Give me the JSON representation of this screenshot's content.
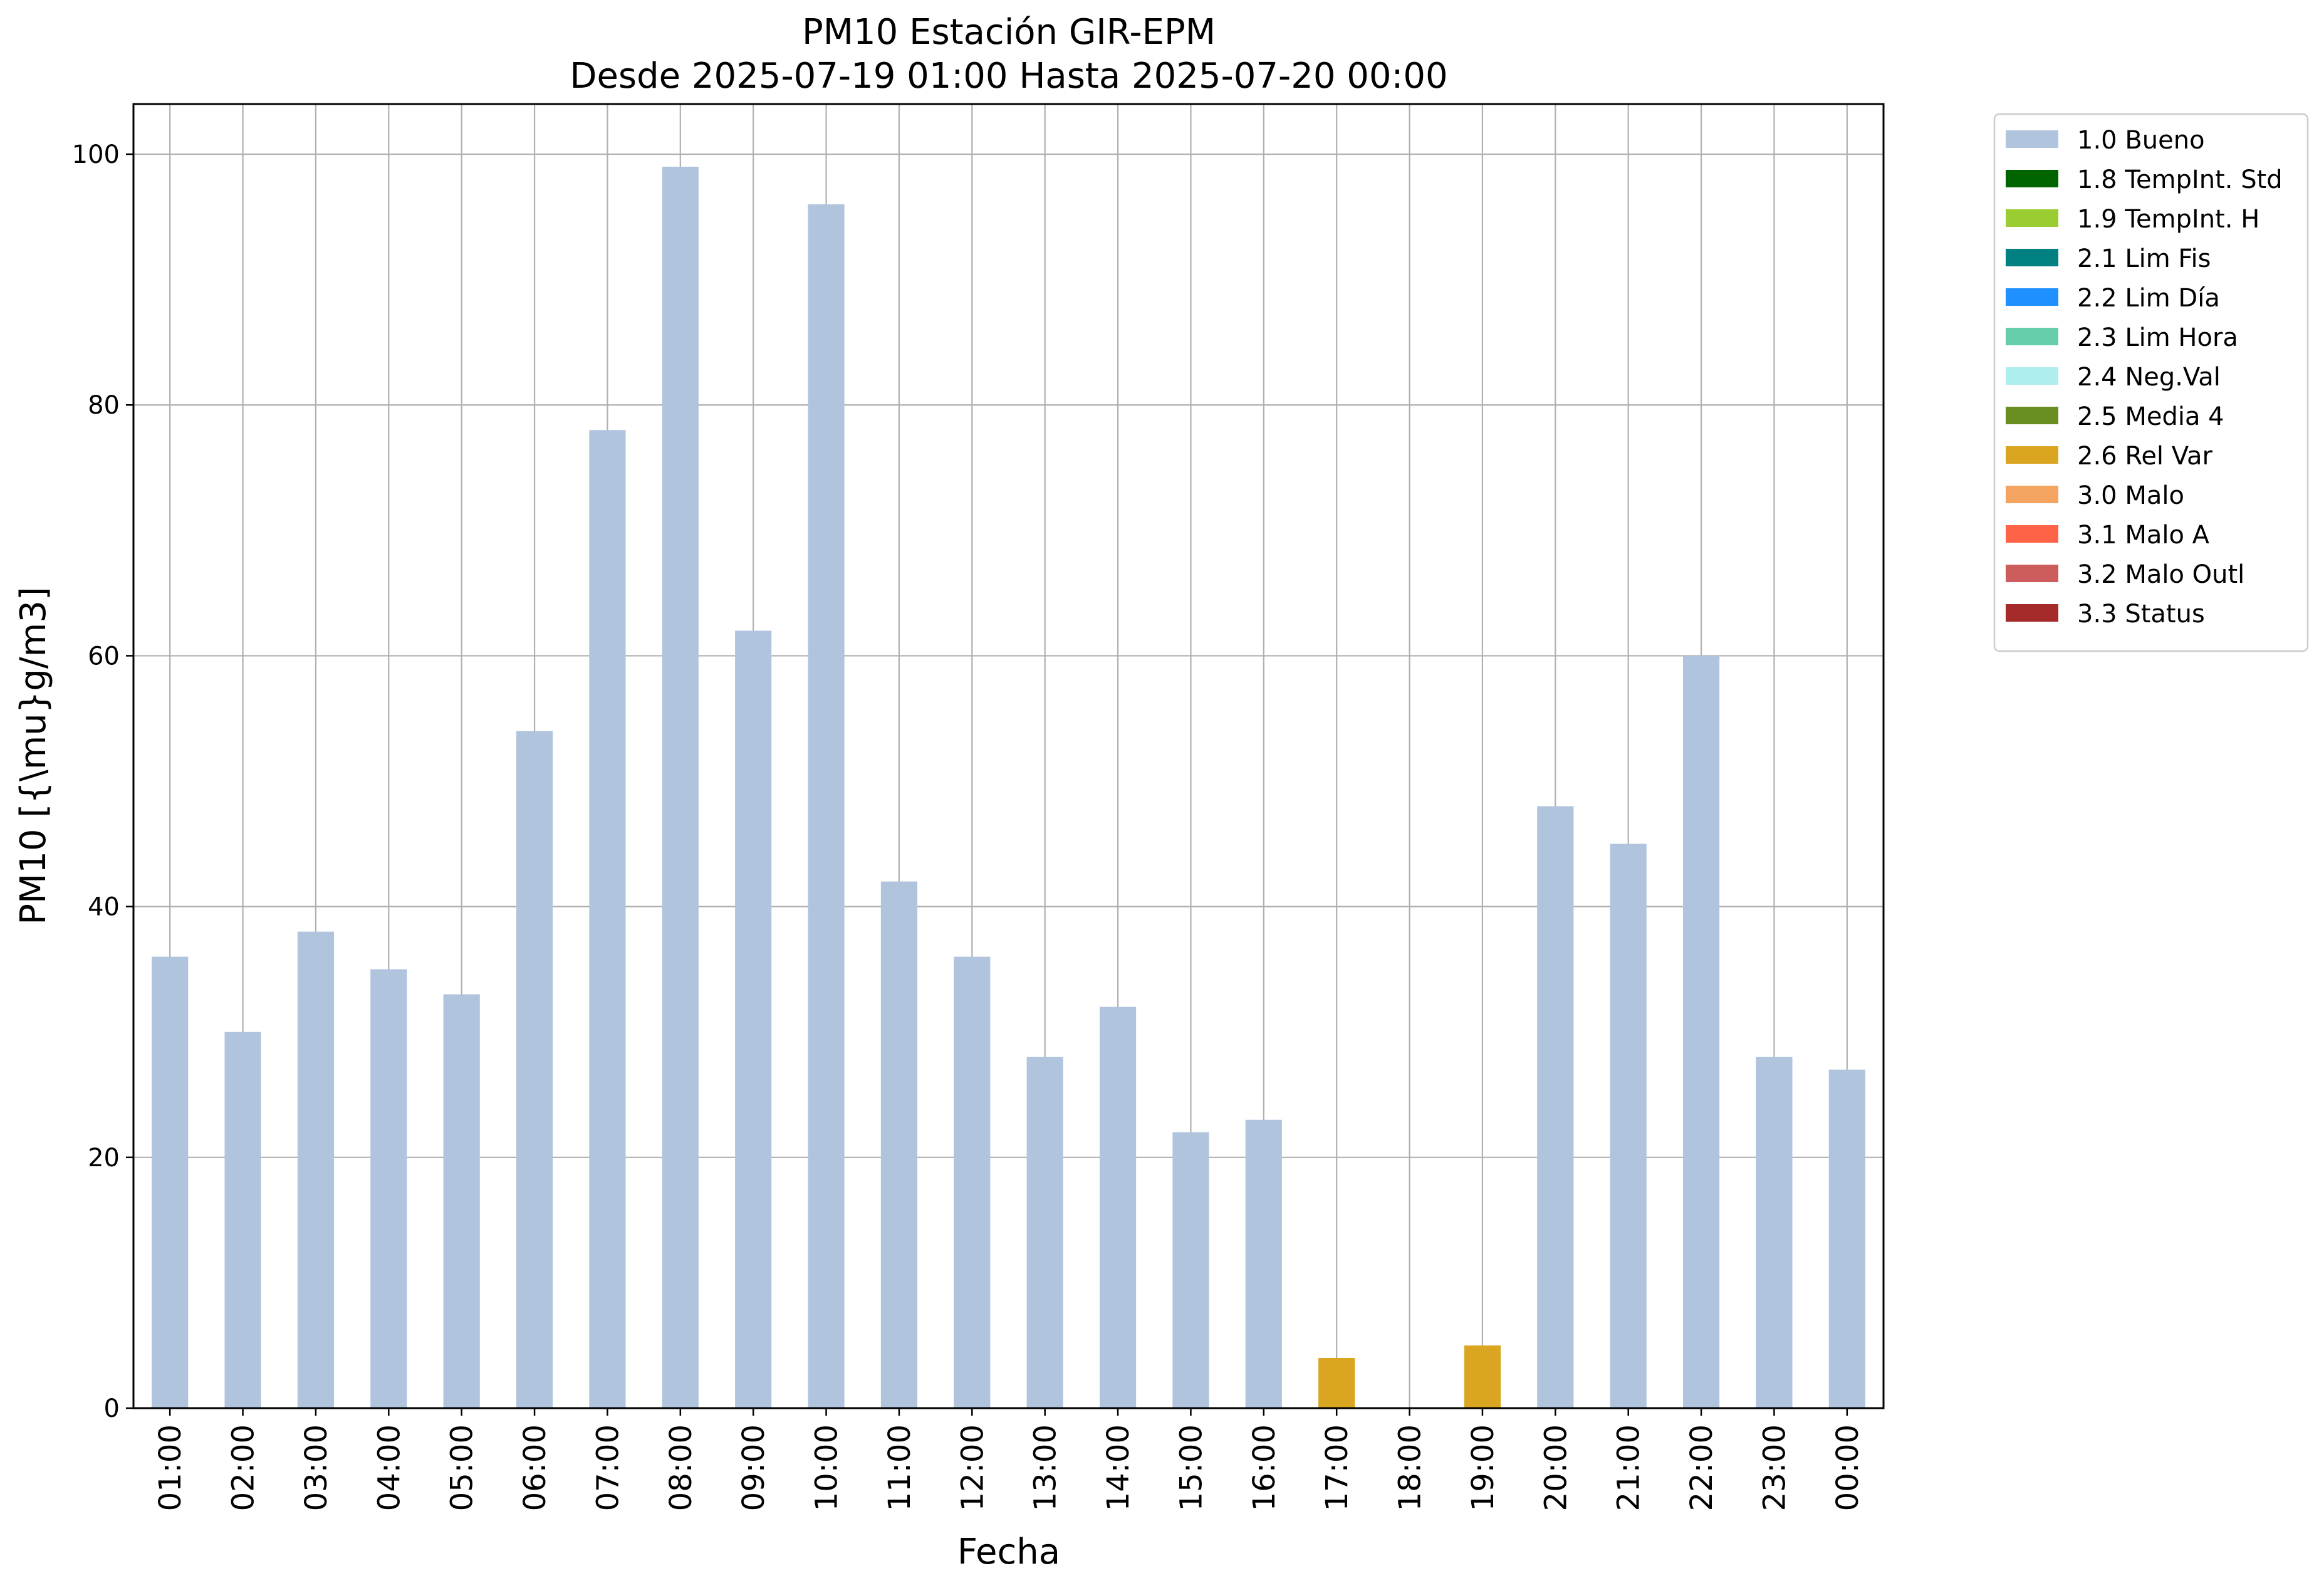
{
  "chart_data": {
    "type": "bar",
    "title": "PM10 Estación GIR-EPM",
    "subtitle": "Desde 2025-07-19 01:00 Hasta 2025-07-20 00:00",
    "xlabel": "Fecha",
    "ylabel": "PM10 [{\\mu}g/m3]",
    "ylim": [
      0,
      104
    ],
    "yticks": [
      0,
      20,
      40,
      60,
      80,
      100
    ],
    "grid": true,
    "legend_position": "outside-top-right",
    "categories": [
      "01:00",
      "02:00",
      "03:00",
      "04:00",
      "05:00",
      "06:00",
      "07:00",
      "08:00",
      "09:00",
      "10:00",
      "11:00",
      "12:00",
      "13:00",
      "14:00",
      "15:00",
      "16:00",
      "17:00",
      "18:00",
      "19:00",
      "20:00",
      "21:00",
      "22:00",
      "23:00",
      "00:00"
    ],
    "series": [
      {
        "name": "1.0 Bueno",
        "color": "#b0c4de",
        "values": [
          36,
          30,
          38,
          35,
          33,
          54,
          78,
          99,
          62,
          96,
          42,
          36,
          28,
          32,
          22,
          23,
          0,
          0,
          0,
          48,
          45,
          60,
          28,
          27
        ]
      },
      {
        "name": "1.8 TempInt. Std",
        "color": "#006400",
        "values": [
          0,
          0,
          0,
          0,
          0,
          0,
          0,
          0,
          0,
          0,
          0,
          0,
          0,
          0,
          0,
          0,
          0,
          0,
          0,
          0,
          0,
          0,
          0,
          0
        ]
      },
      {
        "name": "1.9 TempInt. H",
        "color": "#9acd32",
        "values": [
          0,
          0,
          0,
          0,
          0,
          0,
          0,
          0,
          0,
          0,
          0,
          0,
          0,
          0,
          0,
          0,
          0,
          0,
          0,
          0,
          0,
          0,
          0,
          0
        ]
      },
      {
        "name": "2.1 Lim Fis",
        "color": "#008080",
        "values": [
          0,
          0,
          0,
          0,
          0,
          0,
          0,
          0,
          0,
          0,
          0,
          0,
          0,
          0,
          0,
          0,
          0,
          0,
          0,
          0,
          0,
          0,
          0,
          0
        ]
      },
      {
        "name": "2.2 Lim Día",
        "color": "#1e90ff",
        "values": [
          0,
          0,
          0,
          0,
          0,
          0,
          0,
          0,
          0,
          0,
          0,
          0,
          0,
          0,
          0,
          0,
          0,
          0,
          0,
          0,
          0,
          0,
          0,
          0
        ]
      },
      {
        "name": "2.3 Lim Hora",
        "color": "#66cdaa",
        "values": [
          0,
          0,
          0,
          0,
          0,
          0,
          0,
          0,
          0,
          0,
          0,
          0,
          0,
          0,
          0,
          0,
          0,
          0,
          0,
          0,
          0,
          0,
          0,
          0
        ]
      },
      {
        "name": "2.4 Neg.Val",
        "color": "#afeeee",
        "values": [
          0,
          0,
          0,
          0,
          0,
          0,
          0,
          0,
          0,
          0,
          0,
          0,
          0,
          0,
          0,
          0,
          0,
          0,
          0,
          0,
          0,
          0,
          0,
          0
        ]
      },
      {
        "name": "2.5 Media 4",
        "color": "#6b8e23",
        "values": [
          0,
          0,
          0,
          0,
          0,
          0,
          0,
          0,
          0,
          0,
          0,
          0,
          0,
          0,
          0,
          0,
          0,
          0,
          0,
          0,
          0,
          0,
          0,
          0
        ]
      },
      {
        "name": "2.6 Rel Var",
        "color": "#daa520",
        "values": [
          0,
          0,
          0,
          0,
          0,
          0,
          0,
          0,
          0,
          0,
          0,
          0,
          0,
          0,
          0,
          0,
          4,
          0,
          5,
          0,
          0,
          0,
          0,
          0
        ]
      },
      {
        "name": "3.0 Malo",
        "color": "#f4a460",
        "values": [
          0,
          0,
          0,
          0,
          0,
          0,
          0,
          0,
          0,
          0,
          0,
          0,
          0,
          0,
          0,
          0,
          0,
          0,
          0,
          0,
          0,
          0,
          0,
          0
        ]
      },
      {
        "name": "3.1 Malo A",
        "color": "#ff6347",
        "values": [
          0,
          0,
          0,
          0,
          0,
          0,
          0,
          0,
          0,
          0,
          0,
          0,
          0,
          0,
          0,
          0,
          0,
          0,
          0,
          0,
          0,
          0,
          0,
          0
        ]
      },
      {
        "name": "3.2 Malo Outl",
        "color": "#cd5c5c",
        "values": [
          0,
          0,
          0,
          0,
          0,
          0,
          0,
          0,
          0,
          0,
          0,
          0,
          0,
          0,
          0,
          0,
          0,
          0,
          0,
          0,
          0,
          0,
          0,
          0
        ]
      },
      {
        "name": "3.3 Status",
        "color": "#a52a2a",
        "values": [
          0,
          0,
          0,
          0,
          0,
          0,
          0,
          0,
          0,
          0,
          0,
          0,
          0,
          0,
          0,
          0,
          0,
          0,
          0,
          0,
          0,
          0,
          0,
          0
        ]
      }
    ]
  }
}
